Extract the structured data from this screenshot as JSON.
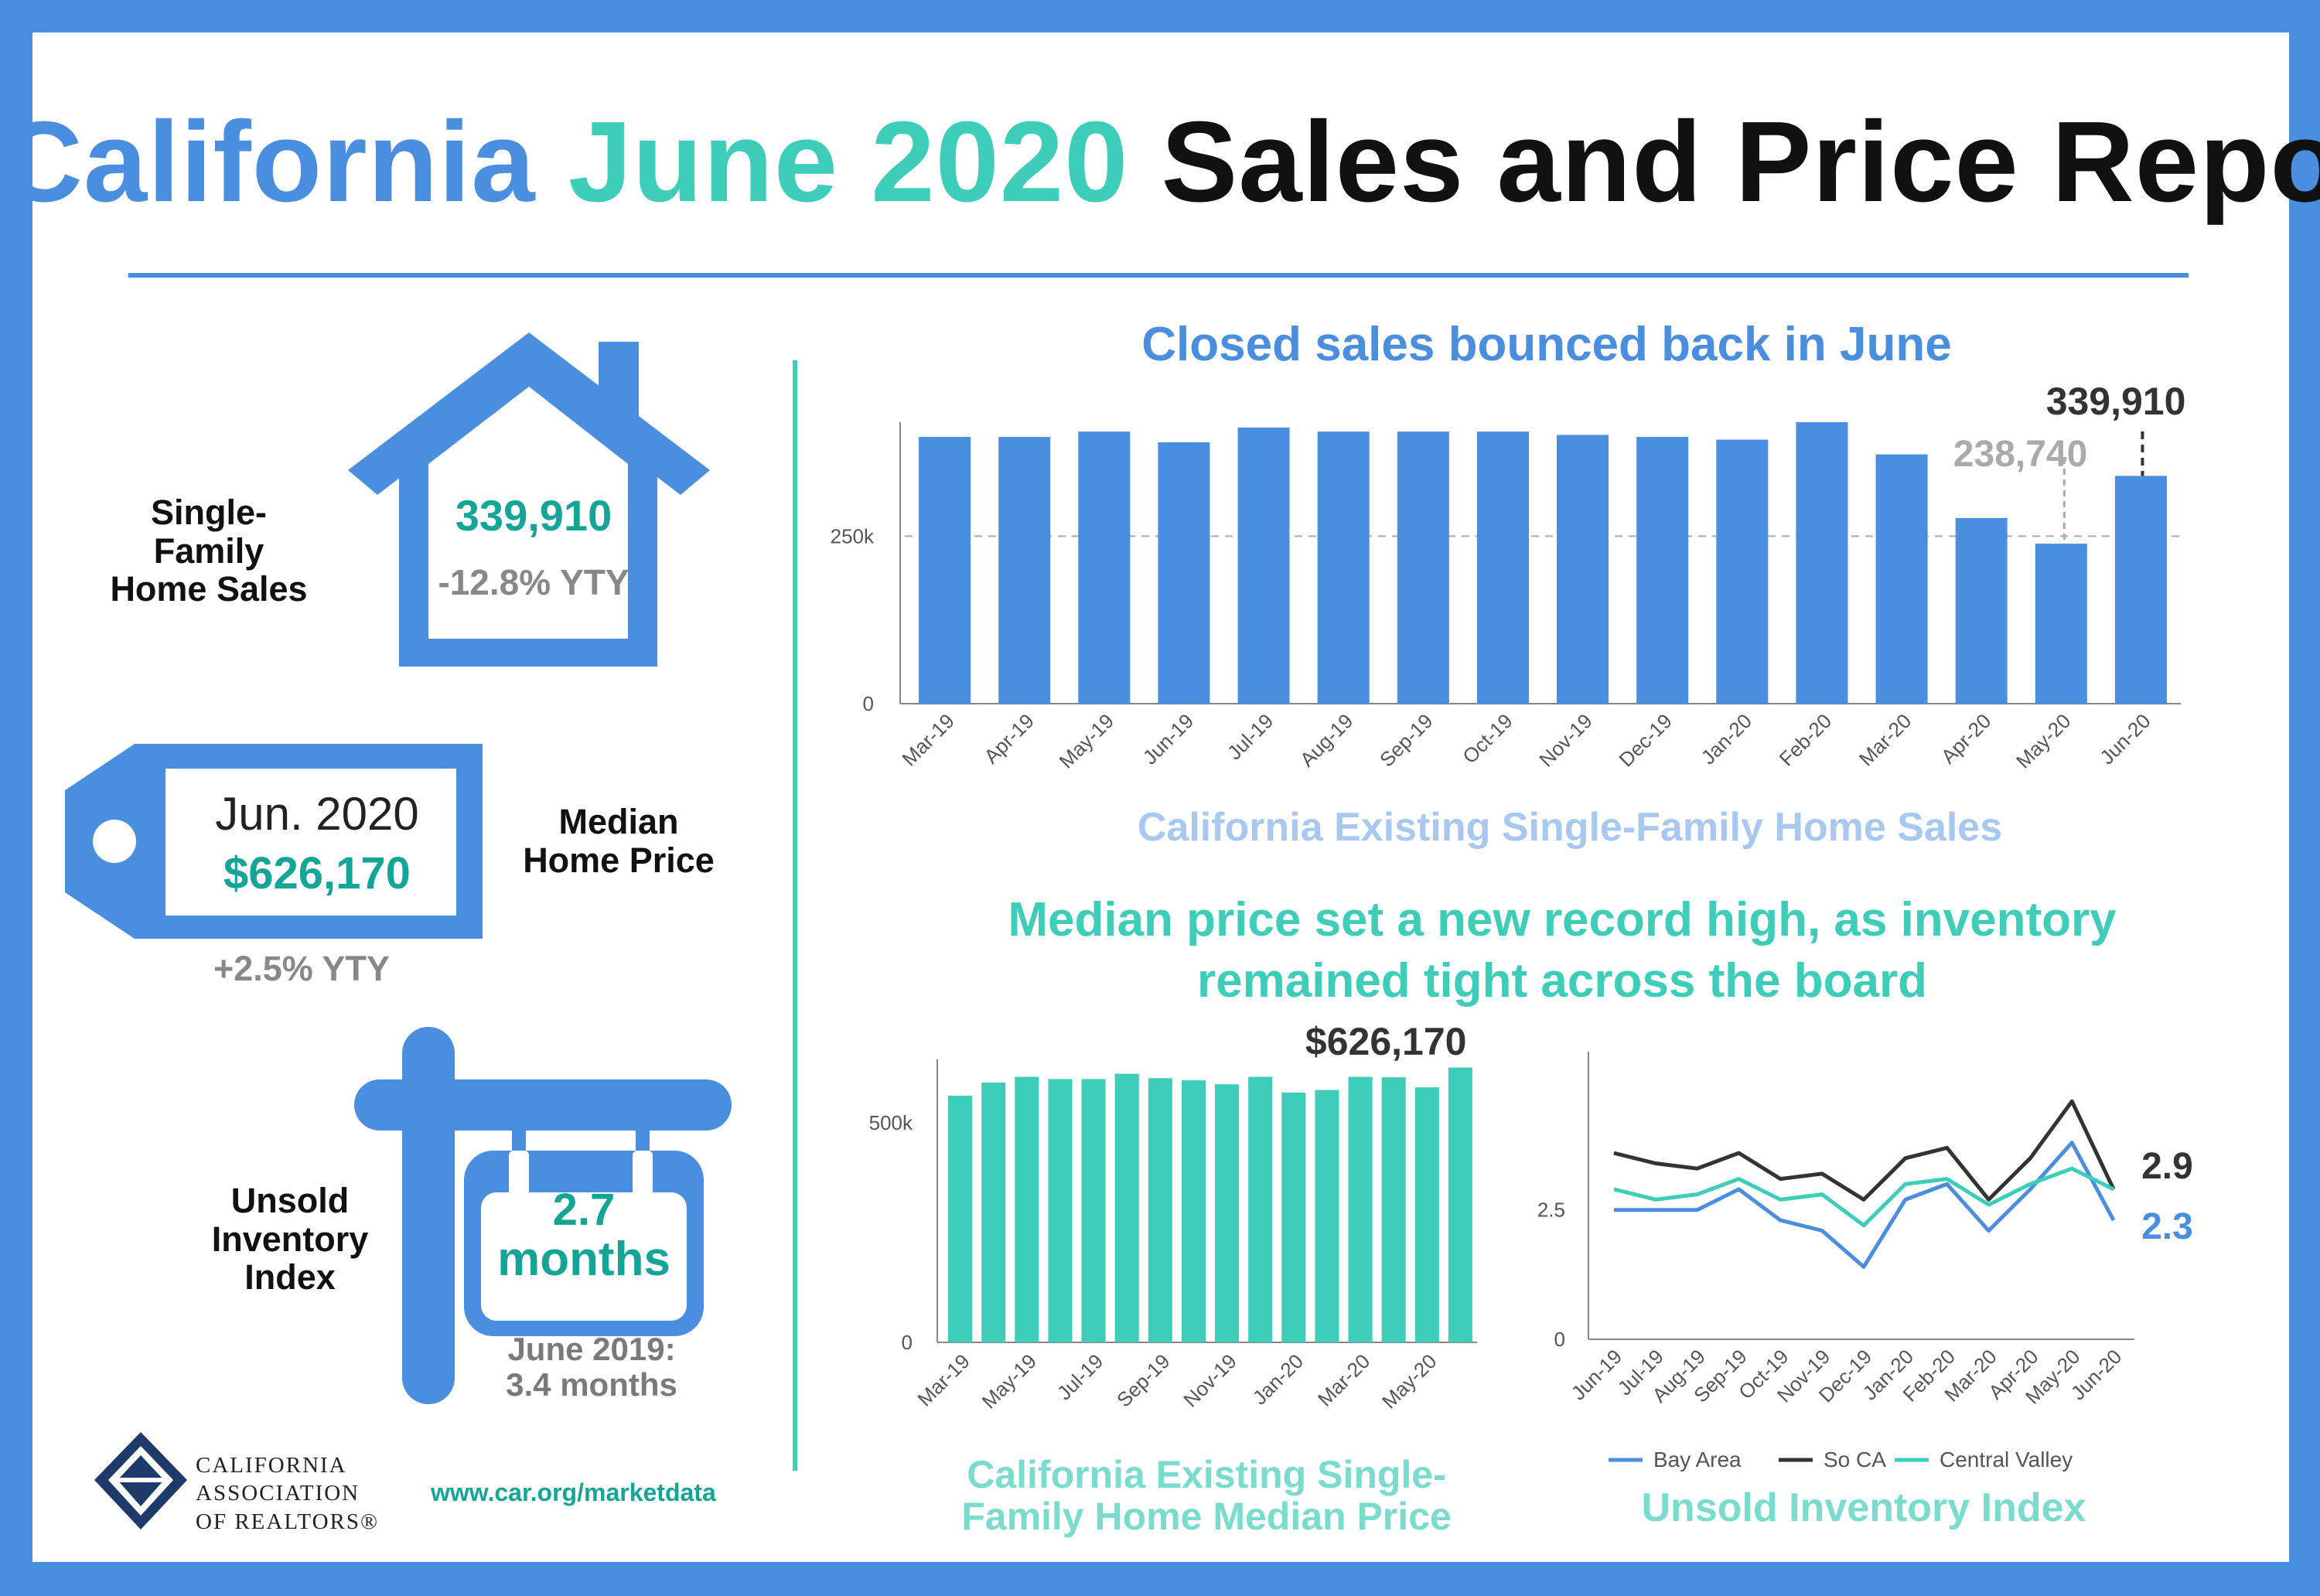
{
  "title": {
    "part1": "California",
    "part2": "June 2020",
    "part3": "Sales and Price Report"
  },
  "colors": {
    "blue": "#4a8ee0",
    "teal": "#3ecdb8",
    "dark": "#333333",
    "gray": "#aaaaaa"
  },
  "left": {
    "home_sales": {
      "label": [
        "Single-",
        "Family",
        "Home Sales"
      ],
      "value": "339,910",
      "change": "-12.8% YTY",
      "icon": "house-icon"
    },
    "median_price": {
      "label": [
        "Median",
        "Home Price"
      ],
      "period": "Jun. 2020",
      "value": "$626,170",
      "change": "+2.5% YTY",
      "icon": "price-tag-icon"
    },
    "inventory": {
      "label": [
        "Unsold",
        "Inventory",
        "Index"
      ],
      "value": "2.7",
      "unit": "months",
      "compare": [
        "June 2019:",
        "3.4 months"
      ],
      "icon": "sign-post-icon"
    }
  },
  "footer": {
    "org": [
      "CALIFORNIA",
      "ASSOCIATION",
      "OF REALTORS®"
    ],
    "url": "www.car.org/marketdata"
  },
  "section2_title": [
    "Median price set a new record high, as inventory",
    "remained tight across the board"
  ],
  "chart_data": [
    {
      "type": "bar",
      "title": "Closed sales bounced back in June",
      "xlabel": "California Existing Single-Family Home Sales",
      "categories": [
        "Mar-19",
        "Apr-19",
        "May-19",
        "Jun-19",
        "Jul-19",
        "Aug-19",
        "Sep-19",
        "Oct-19",
        "Nov-19",
        "Dec-19",
        "Jan-20",
        "Feb-20",
        "Mar-20",
        "Apr-20",
        "May-20",
        "Jun-20"
      ],
      "values": [
        398000,
        398000,
        406000,
        390000,
        412000,
        406000,
        406000,
        406000,
        401000,
        398000,
        394000,
        420000,
        372000,
        277000,
        238740,
        339910
      ],
      "yticks": [
        {
          "v": 0,
          "label": "0"
        },
        {
          "v": 250000,
          "label": "250k"
        }
      ],
      "ylim": [
        0,
        450000
      ],
      "reference_line": 250000,
      "annotations": [
        {
          "index": 14,
          "label": "238,740"
        },
        {
          "index": 15,
          "label": "339,910"
        }
      ],
      "color": "#4a8ee0"
    },
    {
      "type": "bar",
      "xlabel": [
        "California Existing Single-",
        "Family Home Median Price"
      ],
      "categories": [
        "Mar-19",
        "Apr-19",
        "May-19",
        "Jun-19",
        "Jul-19",
        "Aug-19",
        "Sep-19",
        "Oct-19",
        "Nov-19",
        "Dec-19",
        "Jan-20",
        "Feb-20",
        "Mar-20",
        "Apr-20",
        "May-20",
        "Jun-20"
      ],
      "tick_labels": [
        "Mar-19",
        "May-19",
        "Jul-19",
        "Sep-19",
        "Nov-19",
        "Jan-20",
        "Mar-20",
        "May-20"
      ],
      "values": [
        562000,
        592000,
        605000,
        600000,
        600000,
        612000,
        602000,
        597000,
        588000,
        605000,
        569000,
        575000,
        605000,
        604000,
        581000,
        626170
      ],
      "yticks": [
        {
          "v": 0,
          "label": "0"
        },
        {
          "v": 500000,
          "label": "500k"
        }
      ],
      "ylim": [
        0,
        680000
      ],
      "annotations": [
        {
          "index": 15,
          "label": "$626,170"
        }
      ],
      "color": "#3ecdb8"
    },
    {
      "type": "line",
      "xlabel": "Unsold Inventory Index",
      "categories": [
        "Jun-19",
        "Jul-19",
        "Aug-19",
        "Sep-19",
        "Oct-19",
        "Nov-19",
        "Dec-19",
        "Jan-20",
        "Feb-20",
        "Mar-20",
        "Apr-20",
        "May-20",
        "Jun-20"
      ],
      "yticks": [
        {
          "v": 0,
          "label": "0"
        },
        {
          "v": 2.5,
          "label": "2.5"
        }
      ],
      "ylim": [
        0,
        5.5
      ],
      "series": [
        {
          "name": "Bay Area",
          "color": "#4a8ee0",
          "values": [
            2.5,
            2.5,
            2.5,
            2.9,
            2.3,
            2.1,
            1.4,
            2.7,
            3.0,
            2.1,
            2.9,
            3.8,
            2.3
          ]
        },
        {
          "name": "So CA",
          "color": "#333333",
          "values": [
            3.6,
            3.4,
            3.3,
            3.6,
            3.1,
            3.2,
            2.7,
            3.5,
            3.7,
            2.7,
            3.5,
            4.6,
            2.9
          ]
        },
        {
          "name": "Central Valley",
          "color": "#3ecdb8",
          "values": [
            2.9,
            2.7,
            2.8,
            3.1,
            2.7,
            2.8,
            2.2,
            3.0,
            3.1,
            2.6,
            3.0,
            3.3,
            2.9
          ]
        }
      ],
      "end_labels": [
        {
          "series": 1,
          "label": "2.9"
        },
        {
          "series": 0,
          "label": "2.3"
        }
      ],
      "legend": "bottom"
    }
  ]
}
